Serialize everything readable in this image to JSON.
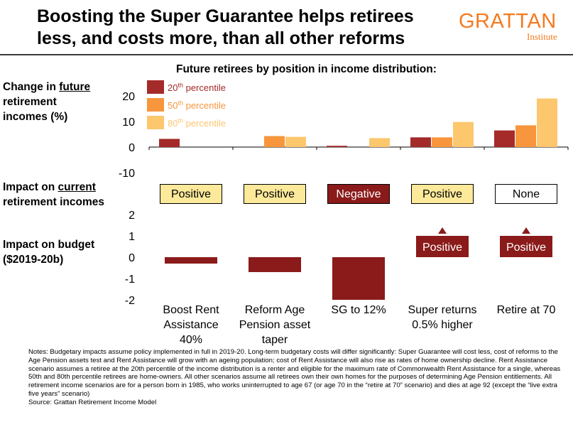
{
  "header": {
    "title": "Boosting the Super Guarantee helps retirees less, and costs more, than all other reforms",
    "logo_main": "GRATTAN",
    "logo_sub": "Institute"
  },
  "labels": {
    "future_prefix": "Change in ",
    "future_underlined": "future",
    "future_suffix": "retirement incomes (%)",
    "current_prefix": "Impact on ",
    "current_underlined": "current",
    "current_suffix": "retirement incomes",
    "budget_line1": "Impact on budget",
    "budget_line2": "($2019-20b)"
  },
  "chart_data": [
    {
      "type": "bar",
      "title": "Future retirees by position in income distribution:",
      "categories": [
        "Boost Rent Assistance 40%",
        "Reform Age Pension asset taper",
        "SG to 12%",
        "Super returns 0.5% higher",
        "Retire at 70"
      ],
      "series": [
        {
          "name": "20th percentile",
          "values": [
            3.2,
            0,
            0.5,
            3.8,
            6.5
          ],
          "color": "#a52a2a"
        },
        {
          "name": "50th percentile",
          "values": [
            0,
            4.3,
            0,
            3.8,
            8.5
          ],
          "color": "#f7963c"
        },
        {
          "name": "80th percentile",
          "values": [
            0,
            4.0,
            3.5,
            9.8,
            19.0
          ],
          "color": "#fdc76e"
        }
      ],
      "ylim": [
        -10,
        20
      ],
      "yticks": [
        "20",
        "10",
        "0",
        "-10"
      ],
      "legend_placement": "top-left"
    },
    {
      "type": "table",
      "row_label": "Impact on current retirement incomes",
      "categories": [
        "Boost Rent Assistance 40%",
        "Reform Age Pension asset taper",
        "SG to 12%",
        "Super returns 0.5% higher",
        "Retire at 70"
      ],
      "values": [
        "Positive",
        "Positive",
        "Negative",
        "Positive",
        "None"
      ],
      "colors": [
        "#fce99a",
        "#fce99a",
        "#8b1a1a",
        "#fce99a",
        "#ffffff"
      ]
    },
    {
      "type": "bar",
      "ylabel": "Impact on budget ($2019-20b)",
      "categories": [
        "Boost Rent Assistance 40%",
        "Reform Age Pension asset taper",
        "SG to 12%",
        "Super returns 0.5% higher",
        "Retire at 70"
      ],
      "values": [
        -0.3,
        -0.7,
        -2.0,
        1.0,
        1.0
      ],
      "bar_labels": [
        "",
        "",
        "",
        "Positive",
        "Positive"
      ],
      "arrows_up": [
        false,
        false,
        false,
        true,
        true
      ],
      "ylim": [
        -2,
        2
      ],
      "yticks": [
        "2",
        "1",
        "0",
        "-1",
        "-2"
      ],
      "color": "#8b1a1a"
    }
  ],
  "category_labels": [
    {
      "l1": "Boost Rent",
      "l2": "Assistance",
      "l3": "40%"
    },
    {
      "l1": "Reform Age",
      "l2": "Pension asset",
      "l3": "taper"
    },
    {
      "l1": "SG to 12%",
      "l2": "",
      "l3": ""
    },
    {
      "l1": "Super returns",
      "l2": "0.5% higher",
      "l3": ""
    },
    {
      "l1": "Retire at 70",
      "l2": "",
      "l3": ""
    }
  ],
  "notes": "Notes: Budgetary impacts assume policy implemented in full in 2019-20. Long-term budgetary costs will differ significantly: Super Guarantee will cost less, cost of reforms to the Age Pension assets test and Rent Assistance will grow with an ageing population; cost of Rent Assistance will also rise as rates of home ownership decline. Rent Assistance scenario assumes a retiree at the 20th percentile of the income distribution is a renter and eligible for the maximum rate of Commonwealth Rent Assistance for a single, whereas 50th and 80th percentile retirees are home-owners. All other scenarios assume all retirees own their own homes for the purposes of determining Age Pension entitlements. All retirement income scenarios are for a person born in 1985, who works uninterrupted to age 67 (or age 70 in the “retire at 70” scenario) and dies at age 92 (except the “live extra five years” scenario)",
  "source": "Source: Grattan Retirement Income Model"
}
